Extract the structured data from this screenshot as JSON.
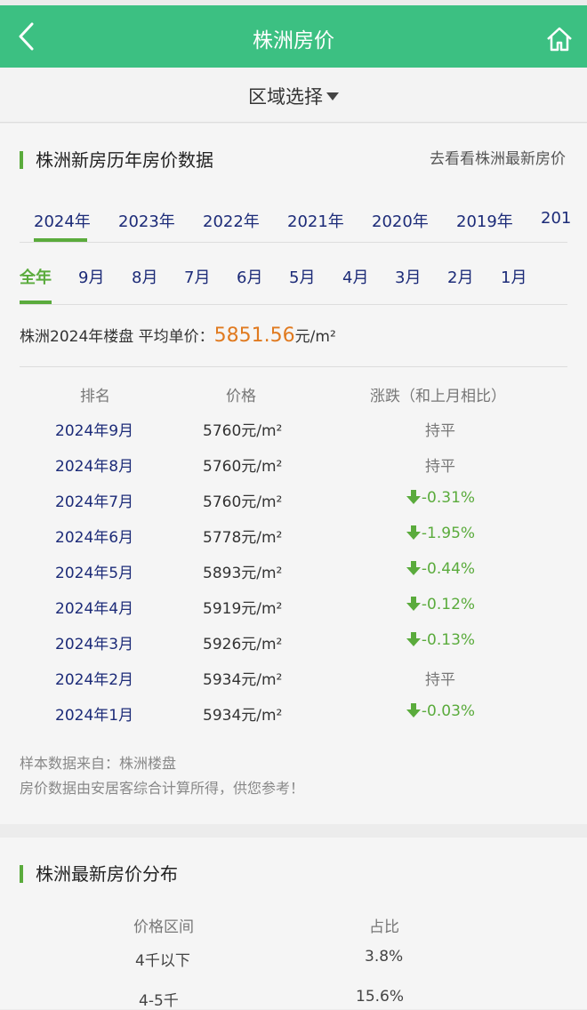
{
  "header": {
    "title": "株洲房价",
    "back_icon": "chevron-left-icon",
    "home_icon": "home-icon"
  },
  "region": {
    "label": "区域选择"
  },
  "history": {
    "title": "株洲新房历年房价数据",
    "more_link": "去看看株洲最新房价",
    "years": [
      "2024年",
      "2023年",
      "2022年",
      "2021年",
      "2020年",
      "2019年",
      "201"
    ],
    "active_year": "2024年",
    "months": [
      "全年",
      "9月",
      "8月",
      "7月",
      "6月",
      "5月",
      "4月",
      "3月",
      "2月",
      "1月"
    ],
    "active_month": "全年",
    "avg_prefix": "株洲2024年楼盘  平均单价：",
    "avg_price": "5851.56",
    "avg_unit": "元/m²",
    "columns": [
      "排名",
      "价格",
      "涨跌（和上月相比）"
    ],
    "rows": [
      {
        "month": "2024年9月",
        "price": "5760元/m²",
        "change": "持平",
        "trend": "flat"
      },
      {
        "month": "2024年8月",
        "price": "5760元/m²",
        "change": "持平",
        "trend": "flat"
      },
      {
        "month": "2024年7月",
        "price": "5760元/m²",
        "change": "-0.31%",
        "trend": "down"
      },
      {
        "month": "2024年6月",
        "price": "5778元/m²",
        "change": "-1.95%",
        "trend": "down"
      },
      {
        "month": "2024年5月",
        "price": "5893元/m²",
        "change": "-0.44%",
        "trend": "down"
      },
      {
        "month": "2024年4月",
        "price": "5919元/m²",
        "change": "-0.12%",
        "trend": "down"
      },
      {
        "month": "2024年3月",
        "price": "5926元/m²",
        "change": "-0.13%",
        "trend": "down"
      },
      {
        "month": "2024年2月",
        "price": "5934元/m²",
        "change": "持平",
        "trend": "flat"
      },
      {
        "month": "2024年1月",
        "price": "5934元/m²",
        "change": "-0.03%",
        "trend": "down"
      }
    ],
    "note_source": "样本数据来自：株洲楼盘",
    "note_disclaimer": "房价数据由安居客综合计算所得，供您参考！"
  },
  "distribution": {
    "title": "株洲最新房价分布",
    "columns": [
      "价格区间",
      "占比"
    ],
    "rows": [
      {
        "range": "4千以下",
        "share": "3.8%"
      },
      {
        "range": "4-5千",
        "share": "15.6%"
      }
    ]
  },
  "colors": {
    "header_bg": "#3cc082",
    "accent_green": "#5aab3c",
    "link_blue": "#1c2b78",
    "price_orange": "#e07a20"
  }
}
